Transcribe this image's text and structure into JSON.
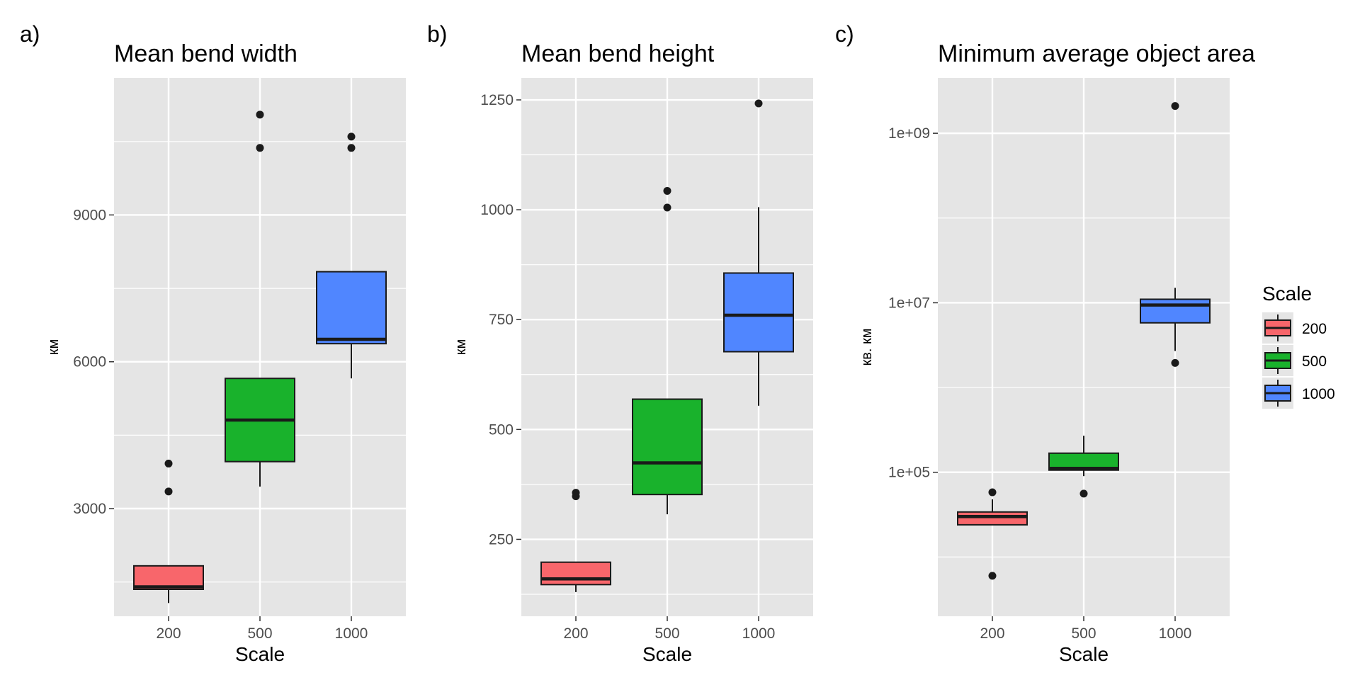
{
  "chart_data": [
    {
      "type": "boxplot",
      "panel_tag": "a)",
      "title": "Mean bend width",
      "xlabel": "Scale",
      "ylabel": "км",
      "categories": [
        "200",
        "500",
        "1000"
      ],
      "ylim": [
        800,
        11800
      ],
      "yticks": [
        3000,
        6000,
        9000
      ],
      "ytick_labels": [
        "3000",
        "6000",
        "9000"
      ],
      "log_scale": false,
      "boxes": [
        {
          "category": "200",
          "lower_whisker": 1070,
          "q1": 1350,
          "median": 1400,
          "q3": 1830,
          "upper_whisker": 1830,
          "outliers": [
            3350,
            3920
          ]
        },
        {
          "category": "500",
          "lower_whisker": 3450,
          "q1": 3960,
          "median": 4810,
          "q3": 5660,
          "upper_whisker": 5660,
          "outliers": [
            10370,
            11050
          ]
        },
        {
          "category": "1000",
          "lower_whisker": 5660,
          "q1": 6370,
          "median": 6460,
          "q3": 7840,
          "upper_whisker": 7840,
          "outliers": [
            10370,
            10600
          ]
        }
      ],
      "grid": true
    },
    {
      "type": "boxplot",
      "panel_tag": "b)",
      "title": "Mean bend height",
      "xlabel": "Scale",
      "ylabel": "км",
      "categories": [
        "200",
        "500",
        "1000"
      ],
      "ylim": [
        75,
        1300
      ],
      "yticks": [
        250,
        500,
        750,
        1000,
        1250
      ],
      "ytick_labels": [
        "250",
        "500",
        "750",
        "1000",
        "1250"
      ],
      "log_scale": false,
      "boxes": [
        {
          "category": "200",
          "lower_whisker": 130,
          "q1": 147,
          "median": 160,
          "q3": 198,
          "upper_whisker": 198,
          "outliers": [
            348,
            356
          ]
        },
        {
          "category": "500",
          "lower_whisker": 307,
          "q1": 352,
          "median": 424,
          "q3": 569,
          "upper_whisker": 569,
          "outliers": [
            1005,
            1043
          ]
        },
        {
          "category": "1000",
          "lower_whisker": 554,
          "q1": 677,
          "median": 760,
          "q3": 856,
          "upper_whisker": 1006,
          "outliers": [
            1242
          ]
        }
      ],
      "grid": true
    },
    {
      "type": "boxplot",
      "panel_tag": "c)",
      "title": "Minimum average object area",
      "xlabel": "Scale",
      "ylabel": "кв. км",
      "categories": [
        "200",
        "500",
        "1000"
      ],
      "ylim": [
        2000,
        4500000000
      ],
      "yticks": [
        100000,
        10000000,
        1000000000
      ],
      "ytick_labels": [
        "1e+05",
        "1e+07",
        "1e+09"
      ],
      "log_scale": true,
      "boxes": [
        {
          "category": "200",
          "lower_whisker": 24000,
          "q1": 24000,
          "median": 30000,
          "q3": 34000,
          "upper_whisker": 48000,
          "outliers": [
            6000,
            58000
          ]
        },
        {
          "category": "500",
          "lower_whisker": 90000,
          "q1": 106000,
          "median": 111000,
          "q3": 168000,
          "upper_whisker": 270000,
          "outliers": [
            56000
          ]
        },
        {
          "category": "1000",
          "lower_whisker": 2700000,
          "q1": 5800000,
          "median": 9400000,
          "q3": 11000000,
          "upper_whisker": 15000000,
          "outliers": [
            1950000,
            2100000000
          ]
        }
      ],
      "grid": true
    }
  ],
  "legend": {
    "title": "Scale",
    "placement": "right",
    "entries": [
      {
        "label": "200",
        "color": "#f8666b"
      },
      {
        "label": "500",
        "color": "#19b22c"
      },
      {
        "label": "1000",
        "color": "#5086ff"
      }
    ]
  },
  "colors": {
    "panel_background": "#e5e5e5",
    "grid": "#ffffff",
    "box_outline": "#1a1a1a",
    "outlier": "#1a1a1a"
  }
}
